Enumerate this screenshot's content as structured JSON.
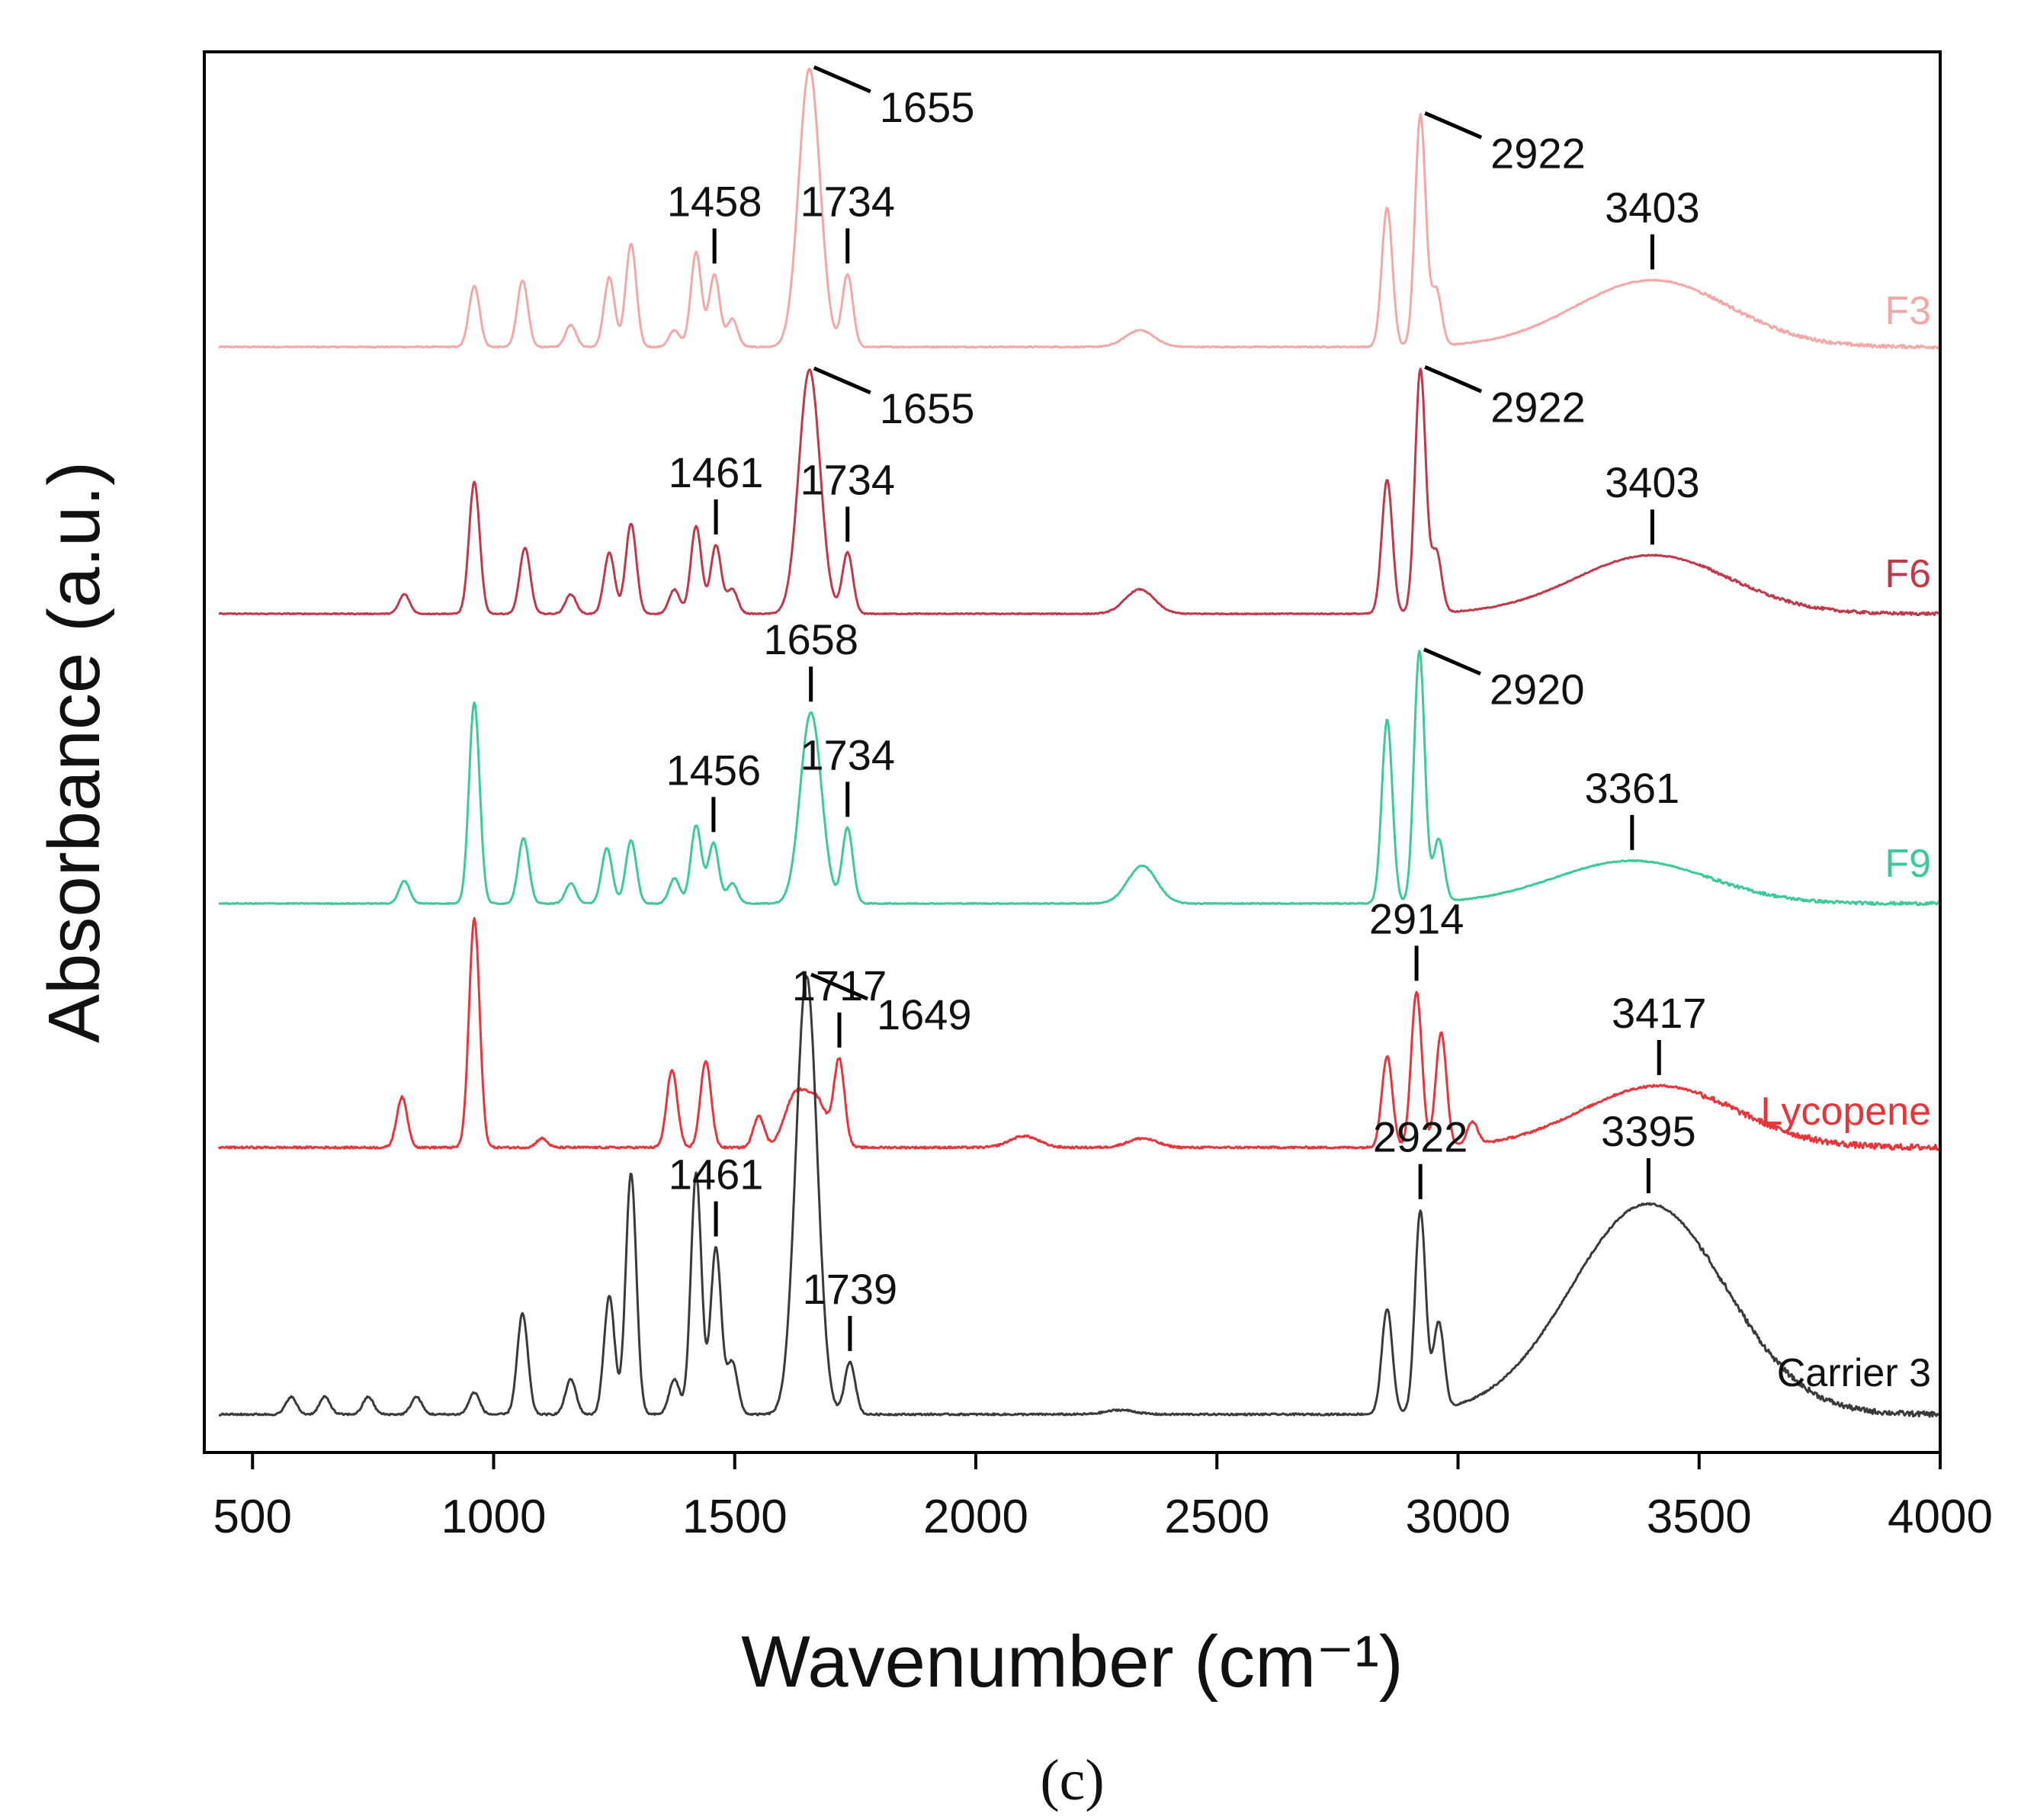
{
  "chart_data": {
    "type": "line",
    "title": "",
    "xlabel": "Wavenumber (cm⁻¹)",
    "ylabel": "Absorbance (a.u.)",
    "xlim": [
      400,
      4000
    ],
    "x_ticks": [
      500,
      1000,
      1500,
      2000,
      2500,
      3000,
      3500,
      4000
    ],
    "y_ticks": [],
    "grid": false,
    "legend": "inline labels at right end of each trace",
    "panel_label": "(c)",
    "series": [
      {
        "name": "F3",
        "color": "#F4A7A7",
        "baseline": 0,
        "peaks": [
          [
            960,
            0.22
          ],
          [
            1060,
            0.24
          ],
          [
            1160,
            0.08
          ],
          [
            1240,
            0.25
          ],
          [
            1285,
            0.37
          ],
          [
            1375,
            0.06
          ],
          [
            1420,
            0.34
          ],
          [
            1458,
            0.26
          ],
          [
            1495,
            0.1
          ],
          [
            1655,
            1.0
          ],
          [
            1734,
            0.26
          ],
          [
            2340,
            0.06
          ],
          [
            2853,
            0.5
          ],
          [
            2922,
            0.83
          ],
          [
            2955,
            0.2
          ],
          [
            3403,
            0.24
          ]
        ],
        "annotations": [
          {
            "label": "1458",
            "x": 1458,
            "style": "vertical"
          },
          {
            "label": "1655",
            "x": 1655,
            "style": "diagonal"
          },
          {
            "label": "1734",
            "x": 1734,
            "style": "vertical"
          },
          {
            "label": "2922",
            "x": 2922,
            "style": "diagonal"
          },
          {
            "label": "3403",
            "x": 3403,
            "style": "vertical"
          }
        ]
      },
      {
        "name": "F6",
        "color": "#C0394B",
        "baseline": 0,
        "peaks": [
          [
            815,
            0.08
          ],
          [
            960,
            0.54
          ],
          [
            1065,
            0.27
          ],
          [
            1160,
            0.08
          ],
          [
            1240,
            0.25
          ],
          [
            1285,
            0.37
          ],
          [
            1375,
            0.1
          ],
          [
            1420,
            0.36
          ],
          [
            1461,
            0.28
          ],
          [
            1495,
            0.1
          ],
          [
            1655,
            1.0
          ],
          [
            1734,
            0.25
          ],
          [
            2340,
            0.1
          ],
          [
            2853,
            0.55
          ],
          [
            2922,
            1.0
          ],
          [
            2955,
            0.25
          ],
          [
            3403,
            0.24
          ]
        ],
        "annotations": [
          {
            "label": "1461",
            "x": 1461,
            "style": "vertical"
          },
          {
            "label": "1655",
            "x": 1655,
            "style": "diagonal"
          },
          {
            "label": "1734",
            "x": 1734,
            "style": "vertical"
          },
          {
            "label": "2922",
            "x": 2922,
            "style": "diagonal"
          },
          {
            "label": "3403",
            "x": 3403,
            "style": "vertical"
          }
        ]
      },
      {
        "name": "F9",
        "color": "#3CC99B",
        "baseline": 0,
        "peaks": [
          [
            815,
            0.09
          ],
          [
            960,
            0.8
          ],
          [
            1062,
            0.26
          ],
          [
            1160,
            0.08
          ],
          [
            1235,
            0.22
          ],
          [
            1285,
            0.25
          ],
          [
            1375,
            0.1
          ],
          [
            1420,
            0.31
          ],
          [
            1456,
            0.24
          ],
          [
            1495,
            0.08
          ],
          [
            1658,
            0.76
          ],
          [
            1734,
            0.3
          ],
          [
            2345,
            0.15
          ],
          [
            2853,
            0.73
          ],
          [
            2920,
            1.0
          ],
          [
            2960,
            0.25
          ],
          [
            3361,
            0.17
          ]
        ],
        "annotations": [
          {
            "label": "1456",
            "x": 1456,
            "style": "vertical"
          },
          {
            "label": "1658",
            "x": 1658,
            "style": "vertical"
          },
          {
            "label": "1734",
            "x": 1734,
            "style": "vertical"
          },
          {
            "label": "2920",
            "x": 2920,
            "style": "diagonal"
          },
          {
            "label": "3361",
            "x": 3361,
            "style": "vertical"
          }
        ]
      },
      {
        "name": "Lycopene",
        "color": "#E8353B",
        "baseline": 0,
        "peaks": [
          [
            810,
            0.22
          ],
          [
            960,
            1.0
          ],
          [
            1100,
            0.04
          ],
          [
            1370,
            0.34
          ],
          [
            1440,
            0.38
          ],
          [
            1550,
            0.14
          ],
          [
            1625,
            0.22
          ],
          [
            1670,
            0.2
          ],
          [
            1717,
            0.37
          ],
          [
            2100,
            0.05
          ],
          [
            2345,
            0.04
          ],
          [
            2853,
            0.4
          ],
          [
            2914,
            0.68
          ],
          [
            2965,
            0.5
          ],
          [
            3030,
            0.1
          ],
          [
            3417,
            0.27
          ]
        ],
        "annotations": [
          {
            "label": "1717",
            "x": 1717,
            "style": "vertical"
          },
          {
            "label": "2914",
            "x": 2914,
            "style": "vertical"
          },
          {
            "label": "3417",
            "x": 3417,
            "style": "vertical"
          }
        ]
      },
      {
        "name": "Carrier 3",
        "color": "#3A3A3A",
        "baseline": 0,
        "peaks": [
          [
            580,
            0.04
          ],
          [
            650,
            0.04
          ],
          [
            740,
            0.04
          ],
          [
            840,
            0.04
          ],
          [
            960,
            0.05
          ],
          [
            1060,
            0.23
          ],
          [
            1160,
            0.08
          ],
          [
            1240,
            0.27
          ],
          [
            1285,
            0.55
          ],
          [
            1375,
            0.08
          ],
          [
            1420,
            0.55
          ],
          [
            1461,
            0.38
          ],
          [
            1495,
            0.12
          ],
          [
            1649,
            1.0
          ],
          [
            1739,
            0.12
          ],
          [
            2300,
            0.01
          ],
          [
            2853,
            0.24
          ],
          [
            2922,
            0.46
          ],
          [
            2960,
            0.2
          ],
          [
            3395,
            0.48
          ]
        ],
        "annotations": [
          {
            "label": "1461",
            "x": 1461,
            "style": "vertical"
          },
          {
            "label": "1649",
            "x": 1649,
            "style": "diagonal"
          },
          {
            "label": "1739",
            "x": 1739,
            "style": "vertical"
          },
          {
            "label": "2922",
            "x": 2922,
            "style": "vertical"
          },
          {
            "label": "3395",
            "x": 3395,
            "style": "vertical"
          }
        ]
      }
    ]
  }
}
